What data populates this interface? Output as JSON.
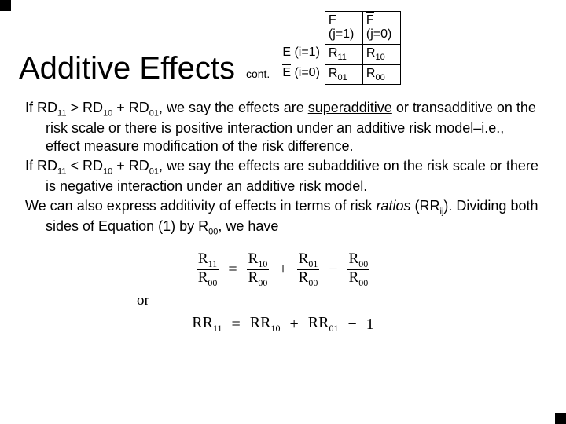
{
  "title": "Additive Effects",
  "cont": "cont.",
  "table": {
    "col_F": "F",
    "col_j1": "(j=1)",
    "col_j0": "(j=0)",
    "row_E": "E (i=1)",
    "row_i0": "(i=0)",
    "R11": "R",
    "R11_sub": "11",
    "R10": "R",
    "R10_sub": "10",
    "R01": "R",
    "R01_sub": "01",
    "R00": "R",
    "R00_sub": "00",
    "Fbar": "F",
    "Ebar": "E"
  },
  "body": {
    "p1a": "If RD",
    "p1b": " > RD",
    "p1c": " + RD",
    "p1d": ", we say the effects are ",
    "p1e": "superadditive",
    "p1f": " or transadditive on the risk scale or there is positive interaction under an additive risk model–i.e., effect measure modification of the risk difference.",
    "p2a": "If RD",
    "p2b": " < RD",
    "p2c": " + RD",
    "p2d": ", we say the effects are subadditive on the risk scale or there is negative interaction under an additive risk model.",
    "p3a": "We can also express additivity of effects in terms of risk ",
    "p3b": "ratios",
    "p3c": " (RR",
    "p3d": "). Dividing both sides of Equation (1) by R",
    "p3e": ", we have",
    "s11": "11",
    "s10": "10",
    "s01": "01",
    "s00": "00",
    "sij": "ij"
  },
  "eq": {
    "R": "R",
    "RR": "RR",
    "s11": "11",
    "s10": "10",
    "s01": "01",
    "s00": "00",
    "eq": "=",
    "plus": "+",
    "minus": "−",
    "one": "1",
    "or": "or"
  },
  "colors": {
    "background": "#ffffff",
    "text": "#000000",
    "accent": "#000000"
  }
}
